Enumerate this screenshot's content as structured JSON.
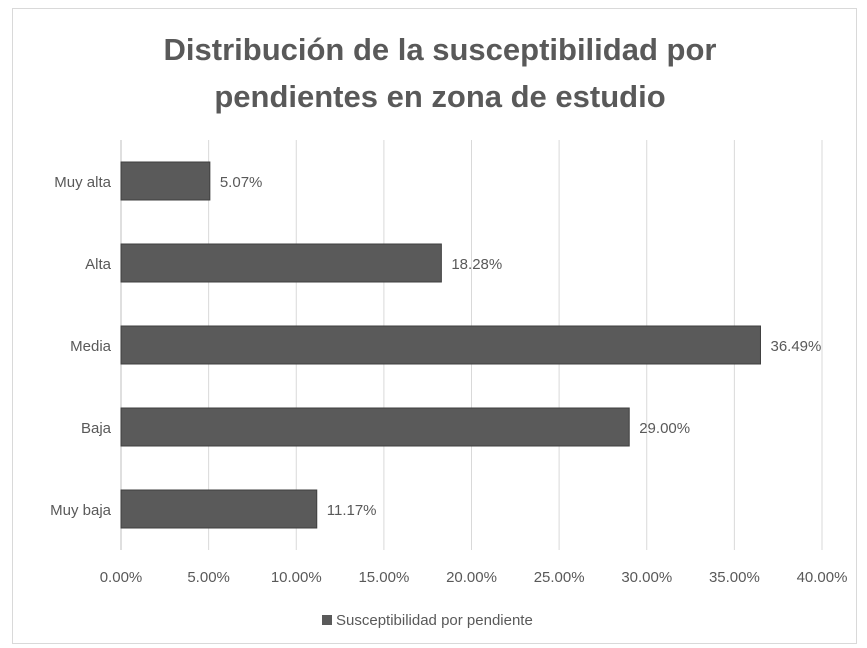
{
  "chart_data": {
    "type": "hbar",
    "title": "Distribución de la susceptibilidad por pendientes en zona de estudio",
    "categories": [
      "Muy alta",
      "Alta",
      "Media",
      "Baja",
      "Muy baja"
    ],
    "series": [
      {
        "name": "Susceptibilidad por pendiente",
        "color": "#5a5a5a",
        "values": [
          5.07,
          18.28,
          36.49,
          29.0,
          11.17
        ],
        "value_labels": [
          "5.07%",
          "18.28%",
          "36.49%",
          "29.00%",
          "11.17%"
        ]
      }
    ],
    "xlim": [
      0,
      40
    ],
    "xticks": [
      {
        "value": 0,
        "label": "0.00%"
      },
      {
        "value": 5,
        "label": "5.00%"
      },
      {
        "value": 10,
        "label": "10.00%"
      },
      {
        "value": 15,
        "label": "15.00%"
      },
      {
        "value": 20,
        "label": "20.00%"
      },
      {
        "value": 25,
        "label": "25.00%"
      },
      {
        "value": 30,
        "label": "30.00%"
      },
      {
        "value": 35,
        "label": "35.00%"
      },
      {
        "value": 40,
        "label": "40.00%"
      }
    ],
    "grid": true,
    "legend": "bottom"
  }
}
